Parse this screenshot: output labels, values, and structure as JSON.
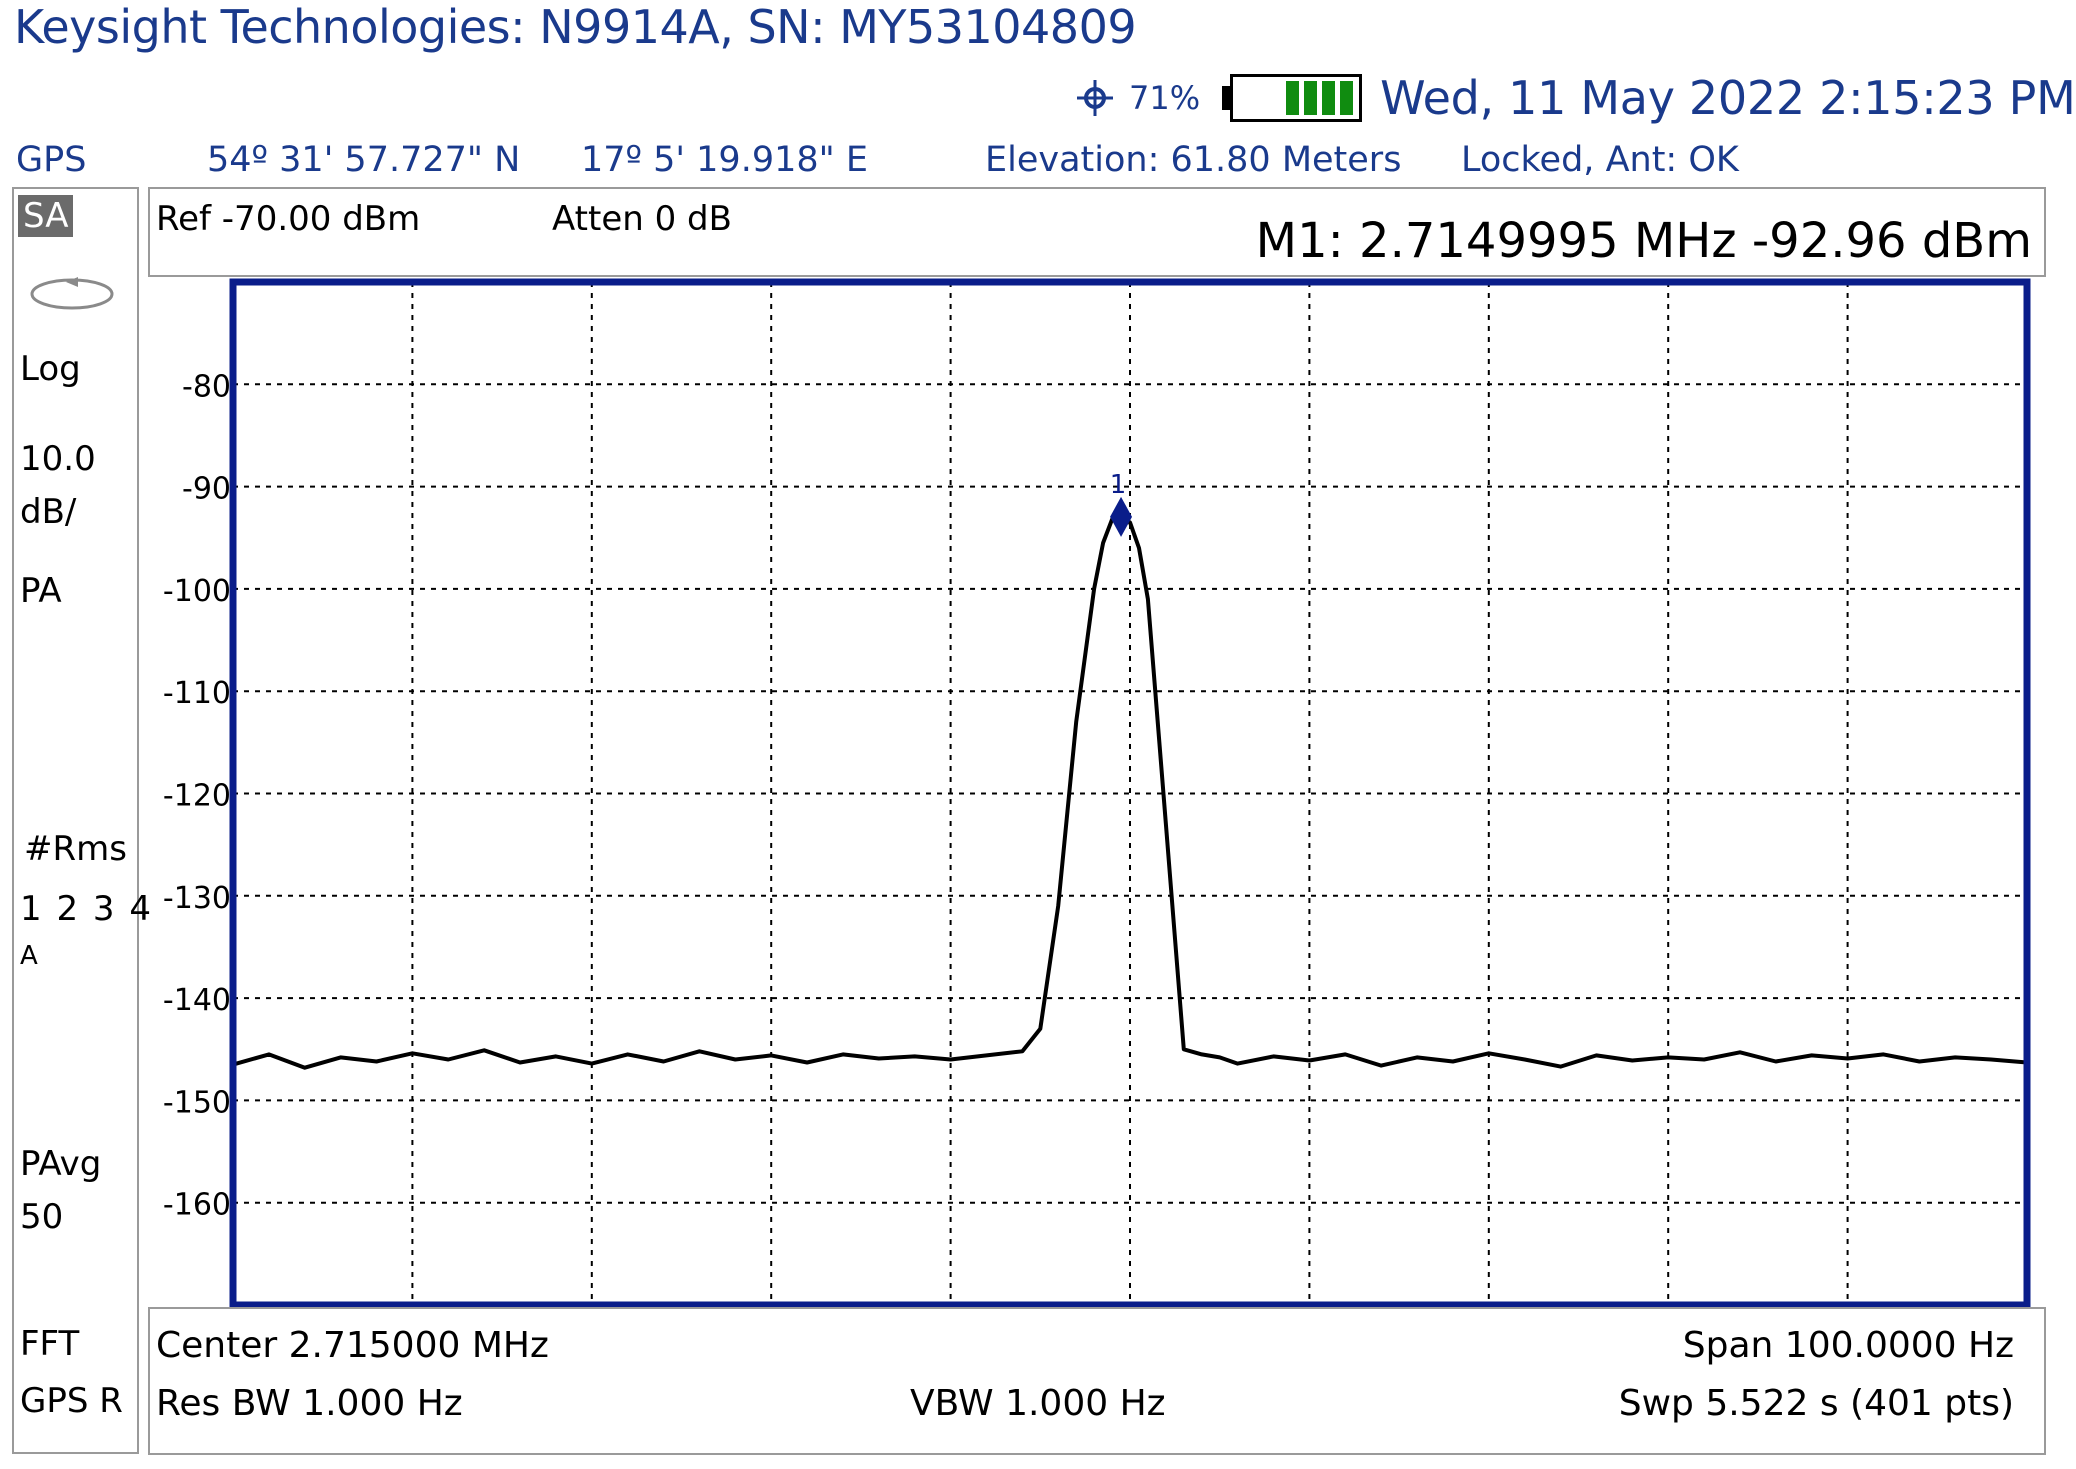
{
  "window": {
    "title": "Keysight Technologies: N9914A, SN: MY53104809"
  },
  "status": {
    "gps_icon": "gps-crosshair-icon",
    "battery_percent": "71%",
    "battery_icon": "battery-icon",
    "datetime": "Wed, 11 May 2022 2:15:23 PM"
  },
  "gps": {
    "label": "GPS",
    "latitude": "54º 31' 57.727\" N",
    "longitude": "17º 5' 19.918\" E",
    "elevation": "Elevation: 61.80 Meters",
    "lock_status": "Locked, Ant: OK"
  },
  "left_panel": {
    "mode": "SA",
    "scale_type": "Log",
    "scale_value": "10.0",
    "scale_unit": "dB/",
    "preamp": "PA",
    "detector": "#Rms",
    "traces": "1 2 3 4",
    "trace_mode": "A",
    "avg_label": "PAvg",
    "avg_count": "50",
    "sweep_type": "FFT",
    "timing": "GPS R"
  },
  "header": {
    "ref_level": "Ref -70.00 dBm",
    "attenuation": "Atten 0 dB",
    "marker_readout": "M1:  2.7149995 MHz  -92.96 dBm"
  },
  "footer": {
    "center": "Center 2.715000 MHz",
    "span": "Span 100.0000  Hz",
    "res_bw": "Res BW 1.000  Hz",
    "vbw": "VBW 1.000  Hz",
    "sweep": "Swp 5.522  s (401 pts)"
  },
  "colors": {
    "frame": "#0a1d8a",
    "header_text": "#1a3a8c",
    "battery_fill": "#108c10",
    "marker": "#0a1d8a",
    "trace": "#000000"
  },
  "chart_data": {
    "type": "line",
    "ylim": [
      -170,
      -70
    ],
    "xlim": [
      2714950,
      2715050
    ],
    "y_ticks": [
      "-80",
      "-90",
      "-100",
      "-110",
      "-120",
      "-130",
      "-140",
      "-150",
      "-160"
    ],
    "grid": true,
    "marker": {
      "label": "1",
      "x": 2714999.5,
      "y": -92.96
    },
    "series": [
      {
        "x": [
          2714950,
          2714952,
          2714954,
          2714956,
          2714958,
          2714960,
          2714962,
          2714964,
          2714966,
          2714968,
          2714970,
          2714972,
          2714974,
          2714976,
          2714978,
          2714980,
          2714982,
          2714984,
          2714986,
          2714988,
          2714990,
          2714992,
          2714994,
          2714995,
          2714996,
          2714997,
          2714998,
          2714998.5,
          2714999,
          2714999.5,
          2715000,
          2715000.5,
          2715001,
          2715001.5,
          2715002,
          2715003,
          2715004,
          2715005,
          2715006,
          2715008,
          2715010,
          2715012,
          2715014,
          2715016,
          2715018,
          2715020,
          2715022,
          2715024,
          2715026,
          2715028,
          2715030,
          2715032,
          2715034,
          2715036,
          2715038,
          2715040,
          2715042,
          2715044,
          2715046,
          2715048,
          2715050
        ],
        "y": [
          -146.5,
          -145.5,
          -146.8,
          -145.8,
          -146.2,
          -145.4,
          -146.0,
          -145.1,
          -146.3,
          -145.7,
          -146.4,
          -145.5,
          -146.2,
          -145.2,
          -146.0,
          -145.6,
          -146.3,
          -145.5,
          -145.9,
          -145.7,
          -146.0,
          -145.6,
          -145.2,
          -143.0,
          -131.0,
          -113.0,
          -100.0,
          -95.5,
          -93.2,
          -92.96,
          -93.5,
          -96.0,
          -101.0,
          -112.0,
          -123.0,
          -145.0,
          -145.5,
          -145.8,
          -146.4,
          -145.7,
          -146.1,
          -145.5,
          -146.6,
          -145.8,
          -146.2,
          -145.4,
          -146.0,
          -146.7,
          -145.6,
          -146.1,
          -145.8,
          -146.0,
          -145.3,
          -146.2,
          -145.6,
          -145.9,
          -145.5,
          -146.2,
          -145.8,
          -146.0,
          -146.3
        ]
      }
    ]
  }
}
